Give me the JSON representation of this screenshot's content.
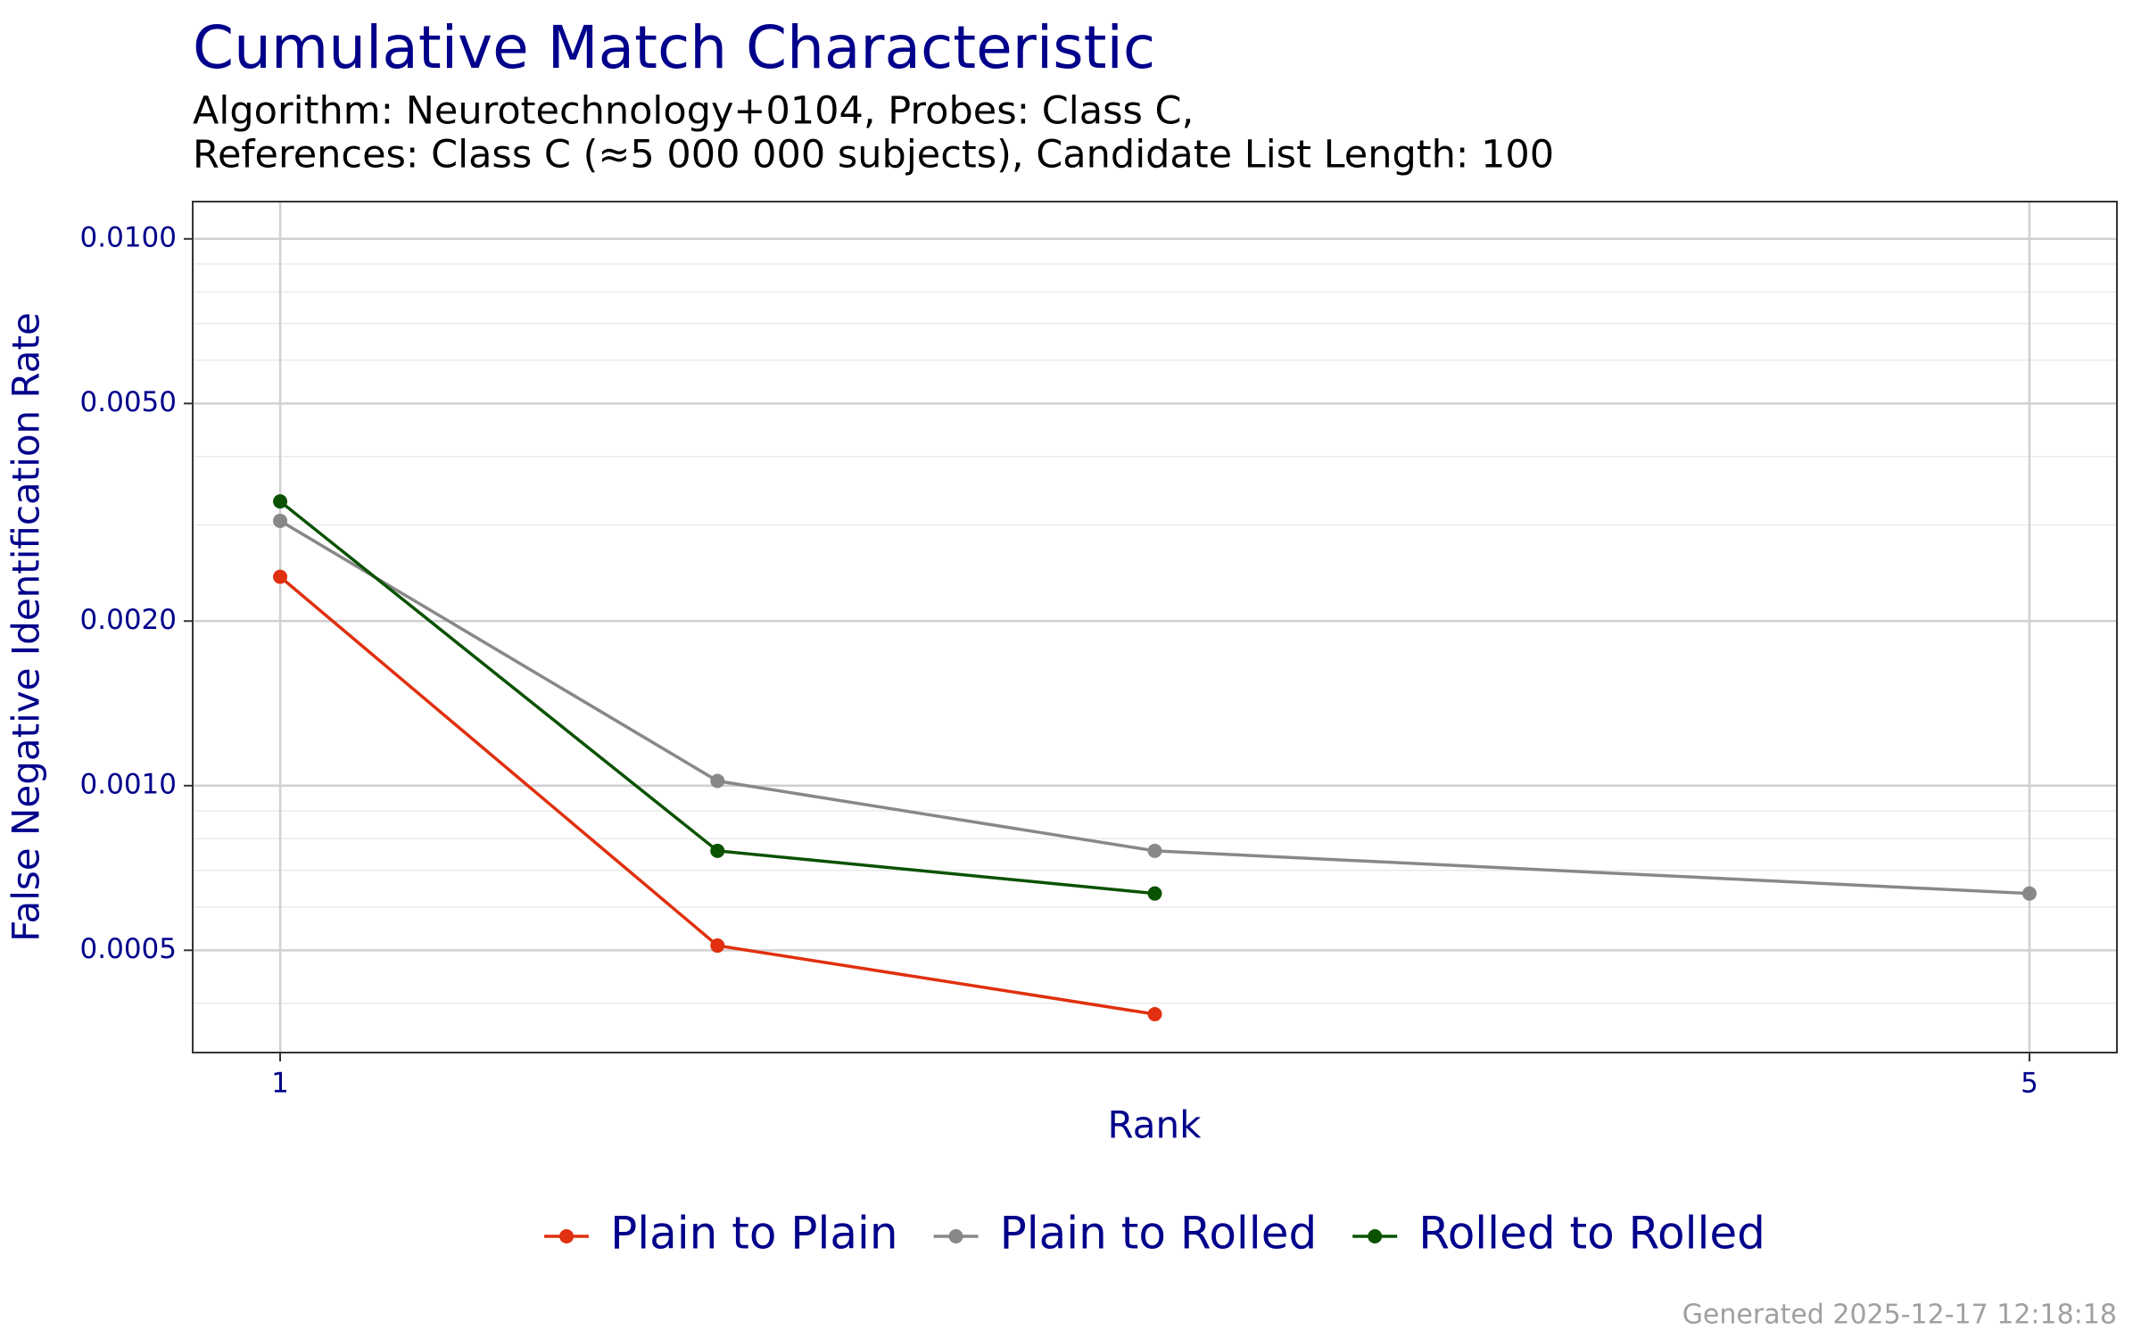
{
  "chart_data": {
    "type": "line",
    "title": "Cumulative Match Characteristic",
    "subtitle": [
      "Algorithm: Neurotechnology+0104, Probes: Class C,",
      "References: Class C (≈5 000 000 subjects), Candidate List Length: 100"
    ],
    "x_label": "Rank",
    "y_label": "False Negative Identification Rate",
    "x": [
      1,
      2,
      3,
      5
    ],
    "xlim": [
      0.8,
      5.2
    ],
    "xticks": [
      1,
      5
    ],
    "ylim": [
      0.000325,
      0.0117
    ],
    "y_log": true,
    "yticks": [
      {
        "value": 0.0005,
        "label": "0.0005"
      },
      {
        "value": 0.001,
        "label": "0.0010"
      },
      {
        "value": 0.002,
        "label": "0.0020"
      },
      {
        "value": 0.005,
        "label": "0.0050"
      },
      {
        "value": 0.01,
        "label": "0.0100"
      }
    ],
    "y_minor_grid": [
      0.0004,
      0.0006,
      0.0007,
      0.0008,
      0.0009,
      0.003,
      0.004,
      0.006,
      0.007,
      0.008,
      0.009
    ],
    "grid": true,
    "legend": "bottom",
    "series": [
      {
        "name": "Plain to Plain",
        "color": "#e0300f",
        "values": [
          0.00241,
          0.00051,
          0.000382,
          null
        ]
      },
      {
        "name": "Plain to Rolled",
        "color": "#888888",
        "values": [
          0.00305,
          0.00102,
          0.00076,
          0.000635
        ]
      },
      {
        "name": "Rolled to Rolled",
        "color": "#0a5200",
        "values": [
          0.00331,
          0.00076,
          0.000635,
          null
        ]
      }
    ],
    "footer": "Generated 2025-12-17 12:18:18"
  }
}
